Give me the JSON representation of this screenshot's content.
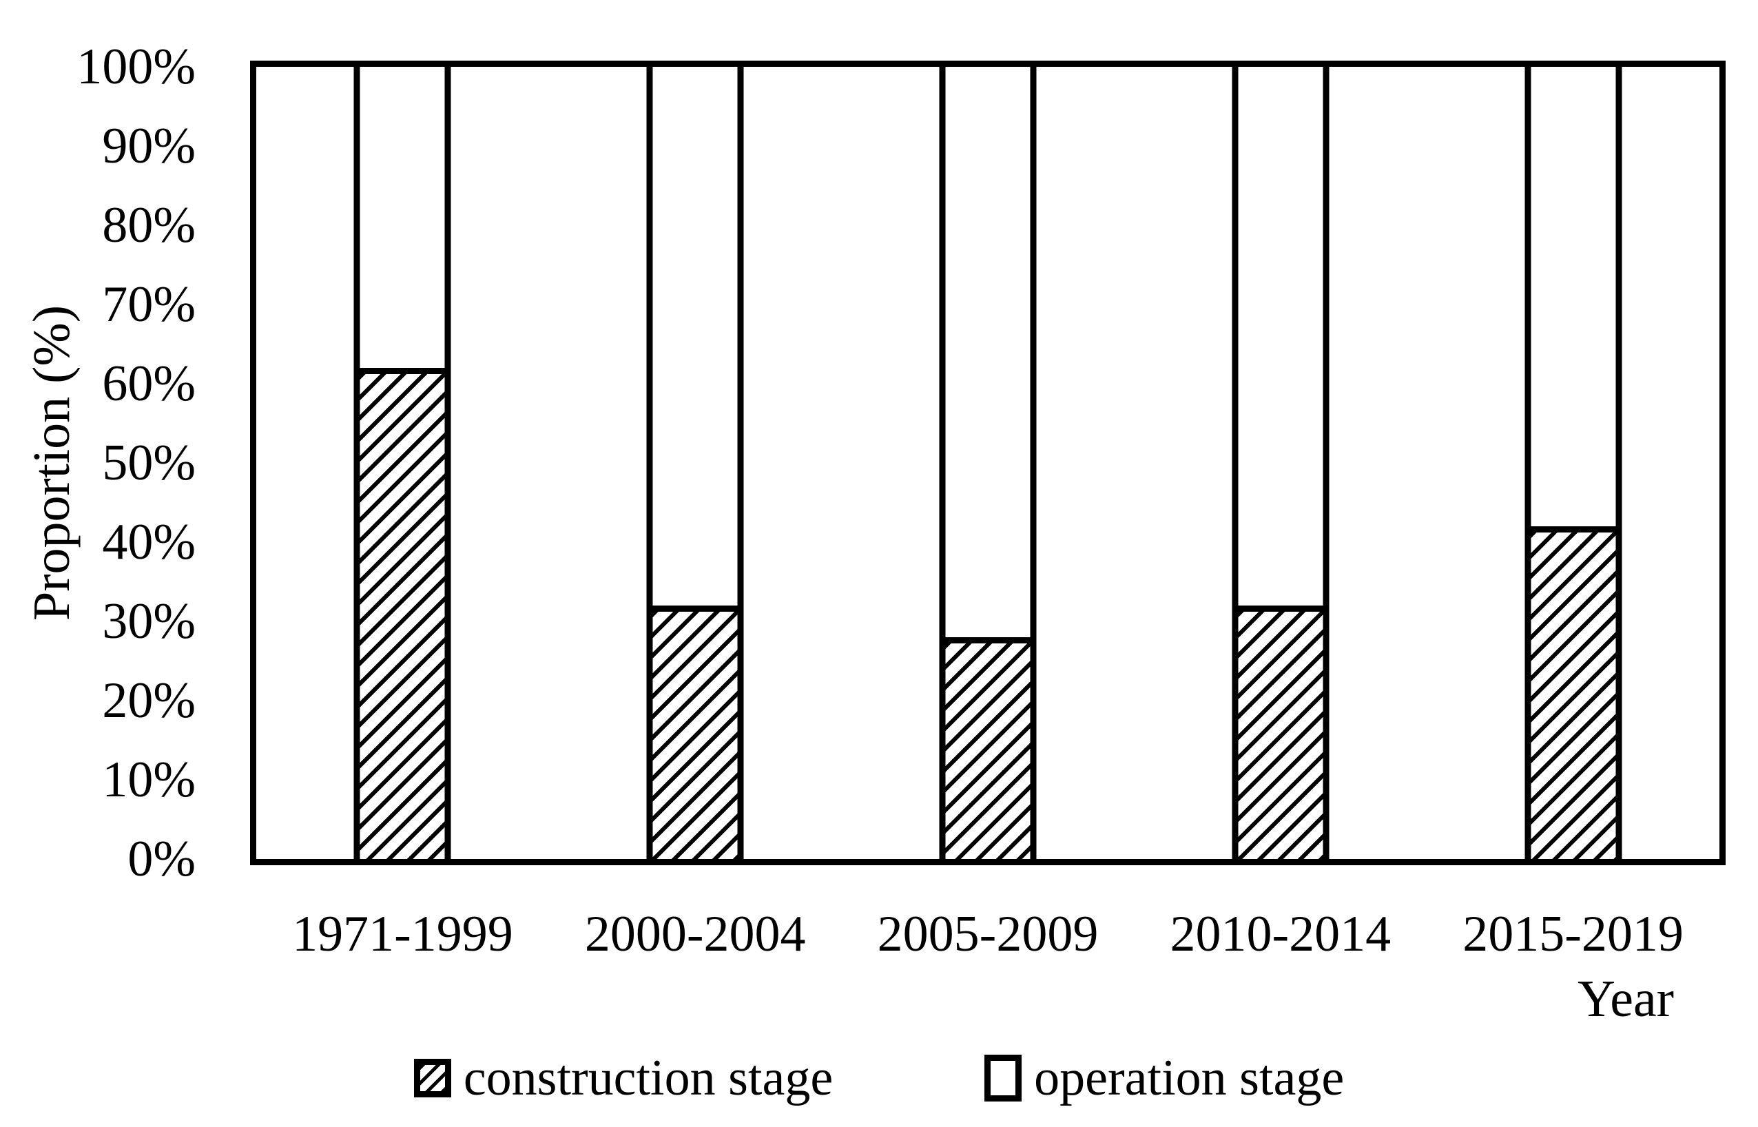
{
  "page": {
    "background": "#ffffff",
    "foreground": "#000000"
  },
  "chart_data": {
    "type": "bar",
    "variant": "100-percent-stacked-column",
    "title": "",
    "xlabel": "Year",
    "ylabel": "Proportion (%)",
    "ylim": [
      0,
      100
    ],
    "ytick_step": 10,
    "ytick_labels": [
      "100%",
      "90%",
      "80%",
      "70%",
      "60%",
      "50%",
      "40%",
      "30%",
      "20%",
      "10%",
      "0%"
    ],
    "categories": [
      "1971-1999",
      "2000-2004",
      "2005-2009",
      "2010-2014",
      "2015-2019"
    ],
    "series": [
      {
        "name": "construction stage",
        "fill": "diagonal-hatch",
        "values": [
          62,
          32,
          28,
          32,
          42
        ]
      },
      {
        "name": "operation stage",
        "fill": "white",
        "values": [
          38,
          68,
          72,
          68,
          58
        ]
      }
    ],
    "grid": "off",
    "legend_position": "bottom",
    "colors": {
      "bar_outline": "#000000",
      "hatch": "#000000",
      "background": "#ffffff"
    }
  }
}
